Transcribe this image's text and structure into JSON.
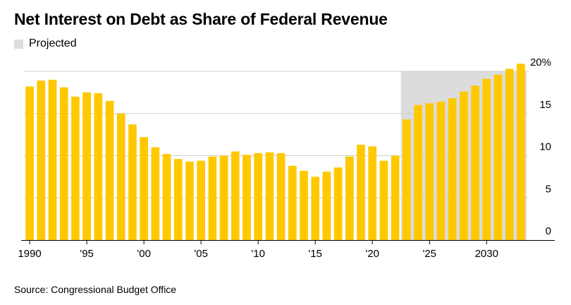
{
  "chart_data": {
    "type": "bar",
    "title": "Net Interest on Debt as Share of Federal Revenue",
    "legend": {
      "label": "Projected",
      "placement": "top-left"
    },
    "source": "Source: Congressional Budget Office",
    "xlabel": "",
    "ylabel": "",
    "ylim": [
      0,
      20
    ],
    "y_ticks": [
      {
        "value": 0,
        "label": "0"
      },
      {
        "value": 5,
        "label": "5"
      },
      {
        "value": 10,
        "label": "10"
      },
      {
        "value": 15,
        "label": "15"
      },
      {
        "value": 20,
        "label": "20%"
      }
    ],
    "x_ticks": [
      {
        "year": 1990,
        "label": "1990"
      },
      {
        "year": 1995,
        "label": "'95"
      },
      {
        "year": 2000,
        "label": "'00"
      },
      {
        "year": 2005,
        "label": "'05"
      },
      {
        "year": 2010,
        "label": "'10"
      },
      {
        "year": 2015,
        "label": "'15"
      },
      {
        "year": 2020,
        "label": "'20"
      },
      {
        "year": 2025,
        "label": "'25"
      },
      {
        "year": 2030,
        "label": "2030"
      }
    ],
    "projection_start_year": 2023,
    "categories": [
      1990,
      1991,
      1992,
      1993,
      1994,
      1995,
      1996,
      1997,
      1998,
      1999,
      2000,
      2001,
      2002,
      2003,
      2004,
      2005,
      2006,
      2007,
      2008,
      2009,
      2010,
      2011,
      2012,
      2013,
      2014,
      2015,
      2016,
      2017,
      2018,
      2019,
      2020,
      2021,
      2022,
      2023,
      2024,
      2025,
      2026,
      2027,
      2028,
      2029,
      2030,
      2031,
      2032,
      2033
    ],
    "values": [
      18.2,
      18.9,
      19.0,
      18.1,
      17.0,
      17.5,
      17.4,
      16.5,
      15.0,
      13.7,
      12.2,
      11.0,
      10.2,
      9.6,
      9.3,
      9.4,
      9.9,
      10.0,
      10.5,
      10.1,
      10.3,
      10.4,
      10.3,
      8.8,
      8.2,
      7.5,
      8.1,
      8.6,
      9.9,
      11.3,
      11.1,
      9.4,
      10.0,
      14.3,
      16.0,
      16.2,
      16.4,
      16.8,
      17.6,
      18.3,
      19.1,
      19.6,
      20.3,
      20.9
    ]
  }
}
